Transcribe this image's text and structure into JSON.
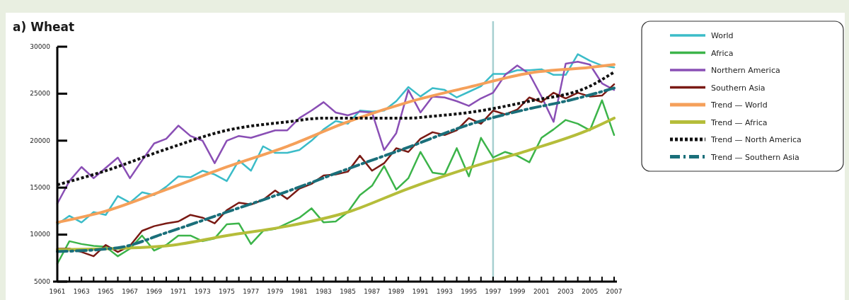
{
  "chart_data": {
    "type": "line",
    "title": "a) Wheat",
    "x": [
      1961,
      1962,
      1963,
      1964,
      1965,
      1966,
      1967,
      1968,
      1969,
      1970,
      1971,
      1972,
      1973,
      1974,
      1975,
      1976,
      1977,
      1978,
      1979,
      1980,
      1981,
      1982,
      1983,
      1984,
      1985,
      1986,
      1987,
      1988,
      1989,
      1990,
      1991,
      1992,
      1993,
      1994,
      1995,
      1996,
      1997,
      1998,
      1999,
      2000,
      2001,
      2002,
      2003,
      2004,
      2005,
      2006,
      2007
    ],
    "xlim": [
      1961,
      2007
    ],
    "ylim": [
      5000,
      30000
    ],
    "yticks": [
      5000,
      10000,
      15000,
      20000,
      25000,
      30000
    ],
    "xticks": [
      1961,
      {
        "value": 1962,
        "label": null
      },
      1963,
      {
        "value": 1964,
        "label": null
      },
      1965,
      {
        "value": 1966,
        "label": null
      },
      1967,
      {
        "value": 1968,
        "label": null
      },
      1969,
      {
        "value": 1970,
        "label": null
      },
      1971,
      {
        "value": 1972,
        "label": null
      },
      1973,
      {
        "value": 1974,
        "label": null
      },
      1975,
      {
        "value": 1976,
        "label": null
      },
      1977,
      {
        "value": 1978,
        "label": null
      },
      1979,
      {
        "value": 1980,
        "label": null
      },
      1981,
      {
        "value": 1982,
        "label": null
      },
      1983,
      {
        "value": 1984,
        "label": null
      },
      1985,
      {
        "value": 1986,
        "label": null
      },
      1987,
      {
        "value": 1988,
        "label": null
      },
      1989,
      {
        "value": 1990,
        "label": null
      },
      1991,
      {
        "value": 1992,
        "label": null
      },
      1993,
      {
        "value": 1994,
        "label": null
      },
      1995,
      {
        "value": 1996,
        "label": null
      },
      1997,
      {
        "value": 1998,
        "label": null
      },
      1999,
      {
        "value": 2000,
        "label": null
      },
      2001,
      {
        "value": 2002,
        "label": null
      },
      2003,
      {
        "value": 2004,
        "label": null
      },
      2005,
      {
        "value": 2006,
        "label": null
      },
      2007
    ],
    "legend": "right",
    "grid": false,
    "ref_lines": [
      {
        "axis": "x",
        "value": 1997,
        "color": "#a6cfd0"
      }
    ],
    "series": [
      {
        "name": "World",
        "color": "#3bbcc8",
        "line_style": "solid",
        "values": [
          11100,
          12000,
          11300,
          12400,
          12100,
          14100,
          13400,
          14500,
          14200,
          15100,
          16200,
          16100,
          16800,
          16400,
          15700,
          17900,
          16800,
          19400,
          18700,
          18700,
          19000,
          20000,
          21200,
          22100,
          21800,
          23200,
          23100,
          23200,
          24200,
          25700,
          24700,
          25600,
          25400,
          24600,
          25200,
          25800,
          27100,
          27100,
          27500,
          27500,
          27600,
          27000,
          27000,
          29200,
          28500,
          28000,
          27800
        ]
      },
      {
        "name": "Africa",
        "color": "#3cb44a",
        "line_style": "solid",
        "values": [
          6900,
          9300,
          9000,
          8800,
          8700,
          7700,
          8500,
          9900,
          8300,
          8900,
          9900,
          9900,
          9300,
          9600,
          11100,
          11200,
          9000,
          10400,
          10600,
          11200,
          11800,
          12800,
          11300,
          11400,
          12400,
          14200,
          15200,
          17300,
          14800,
          16000,
          18800,
          16600,
          16400,
          19200,
          16200,
          20300,
          18200,
          18800,
          18400,
          17700,
          20300,
          21200,
          22200,
          21800,
          21100,
          24300,
          20600
        ]
      },
      {
        "name": "Northern America",
        "color": "#8a4fb5",
        "line_style": "solid",
        "values": [
          13300,
          15700,
          17200,
          16000,
          17100,
          18200,
          16000,
          17900,
          19700,
          20200,
          21600,
          20500,
          20000,
          17600,
          20000,
          20500,
          20300,
          20700,
          21100,
          21100,
          22400,
          23200,
          24100,
          23000,
          22700,
          23100,
          23000,
          19000,
          20800,
          25400,
          23000,
          24700,
          24600,
          24200,
          23700,
          24500,
          25100,
          27000,
          28000,
          27100,
          24700,
          22000,
          28200,
          28400,
          28100,
          26100,
          25400
        ]
      },
      {
        "name": "Southern Asia",
        "color": "#7a1a14",
        "line_style": "solid",
        "values": [
          8500,
          8500,
          8150,
          7700,
          8900,
          8150,
          8800,
          10400,
          10900,
          11200,
          11400,
          12100,
          11800,
          11200,
          12600,
          13400,
          13200,
          13700,
          14700,
          13800,
          14900,
          15400,
          16300,
          16400,
          16700,
          18400,
          16800,
          17600,
          19200,
          18800,
          20200,
          20900,
          20600,
          21100,
          22400,
          21800,
          23200,
          22800,
          23300,
          24600,
          24100,
          25100,
          24500,
          25100,
          24700,
          24800,
          26000
        ]
      },
      {
        "name": "Trend — World",
        "color": "#f5a05a",
        "line_style": "solid",
        "x": [
          1961,
          1965,
          1970,
          1975,
          1980,
          1985,
          1990,
          1995,
          2000,
          2005,
          2007
        ],
        "values": [
          11300,
          12500,
          14800,
          17200,
          19400,
          22000,
          24100,
          25700,
          27200,
          27800,
          28100
        ]
      },
      {
        "name": "Trend — Africa",
        "color": "#b5bd3a",
        "line_style": "solid",
        "x": [
          1961,
          1965,
          1970,
          1975,
          1980,
          1985,
          1990,
          1995,
          2000,
          2005,
          2007
        ],
        "values": [
          8400,
          8500,
          8800,
          9900,
          10900,
          12400,
          14900,
          17100,
          19000,
          21200,
          22400
        ]
      },
      {
        "name": "Trend — North America",
        "color": "#111111",
        "line_style": "dotted",
        "x": [
          1961,
          1965,
          1970,
          1975,
          1980,
          1983,
          1985,
          1990,
          1992,
          1995,
          2000,
          2005,
          2007
        ],
        "values": [
          15300,
          16800,
          19100,
          21100,
          22000,
          22400,
          22400,
          22400,
          22600,
          23000,
          24200,
          25800,
          27300
        ]
      },
      {
        "name": "Trend — Southern Asia",
        "color": "#1a6f7a",
        "line_style": "dashed",
        "x": [
          1961,
          1966,
          1970,
          1975,
          1980,
          1985,
          1990,
          1995,
          2000,
          2003,
          2007
        ],
        "values": [
          8200,
          8600,
          10200,
          12400,
          14600,
          17000,
          19300,
          21700,
          23400,
          24200,
          25600
        ]
      }
    ]
  }
}
